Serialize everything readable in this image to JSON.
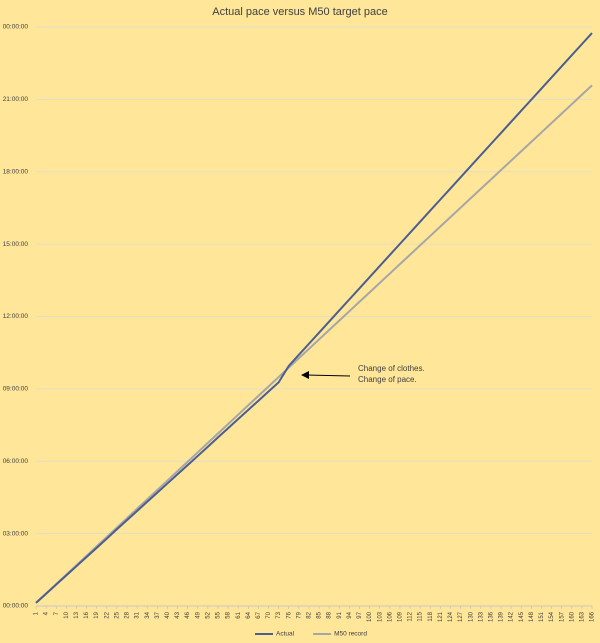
{
  "chart_data": {
    "type": "line",
    "title": "Actual pace versus M50 target pace",
    "x": [
      1,
      4,
      7,
      10,
      13,
      16,
      19,
      22,
      25,
      28,
      31,
      34,
      37,
      40,
      43,
      46,
      49,
      52,
      55,
      58,
      61,
      64,
      67,
      70,
      73,
      76,
      79,
      82,
      85,
      88,
      91,
      94,
      97,
      100,
      103,
      106,
      109,
      112,
      115,
      118,
      121,
      124,
      127,
      130,
      133,
      136,
      139,
      142,
      145,
      148,
      151,
      154,
      157,
      160,
      163,
      166
    ],
    "xlim": [
      1,
      166
    ],
    "xticks": [
      1,
      4,
      7,
      10,
      13,
      16,
      19,
      22,
      25,
      28,
      31,
      34,
      37,
      40,
      43,
      46,
      49,
      52,
      55,
      58,
      61,
      64,
      67,
      70,
      73,
      76,
      79,
      82,
      85,
      88,
      91,
      94,
      97,
      100,
      103,
      106,
      109,
      112,
      115,
      118,
      121,
      124,
      127,
      130,
      133,
      136,
      139,
      142,
      145,
      148,
      151,
      154,
      157,
      160,
      163,
      166
    ],
    "ylim": [
      0,
      24
    ],
    "yticks": [
      {
        "value": 0,
        "label": "00:00:00"
      },
      {
        "value": 3,
        "label": "03:00:00"
      },
      {
        "value": 6,
        "label": "06:00:00"
      },
      {
        "value": 9,
        "label": "09:00:00"
      },
      {
        "value": 12,
        "label": "12:00:00"
      },
      {
        "value": 15,
        "label": "15:00:00"
      },
      {
        "value": 18,
        "label": "18:00:00"
      },
      {
        "value": 21,
        "label": "21:00:00"
      },
      {
        "value": 24,
        "label": "00:00:00"
      }
    ],
    "grid": true,
    "legend": "bottom",
    "series": [
      {
        "name": "Actual",
        "color": "#4a5f8f",
        "values": [
          0.13,
          0.51,
          0.89,
          1.27,
          1.65,
          2.03,
          2.41,
          2.79,
          3.18,
          3.56,
          3.94,
          4.32,
          4.7,
          5.08,
          5.46,
          5.84,
          6.22,
          6.6,
          6.99,
          7.37,
          7.75,
          8.13,
          8.51,
          8.89,
          9.27,
          9.95,
          10.41,
          10.87,
          11.33,
          11.79,
          12.25,
          12.71,
          13.17,
          13.63,
          14.09,
          14.55,
          15.01,
          15.47,
          15.93,
          16.39,
          16.85,
          17.31,
          17.77,
          18.23,
          18.69,
          19.15,
          19.61,
          20.07,
          20.53,
          20.99,
          21.45,
          21.91,
          22.37,
          22.83,
          23.29,
          23.75
        ]
      },
      {
        "name": "M50 record",
        "color": "#a6a6a6",
        "values": [
          0.13,
          0.52,
          0.91,
          1.3,
          1.69,
          2.08,
          2.47,
          2.86,
          3.25,
          3.64,
          4.03,
          4.42,
          4.81,
          5.2,
          5.59,
          5.98,
          6.37,
          6.76,
          7.15,
          7.54,
          7.93,
          8.32,
          8.71,
          9.1,
          9.49,
          9.88,
          10.27,
          10.66,
          11.05,
          11.44,
          11.83,
          12.22,
          12.61,
          13.0,
          13.39,
          13.78,
          14.17,
          14.56,
          14.95,
          15.34,
          15.73,
          16.12,
          16.51,
          16.9,
          17.29,
          17.68,
          18.07,
          18.46,
          18.85,
          19.24,
          19.63,
          20.02,
          20.41,
          20.8,
          21.19,
          21.58
        ]
      }
    ],
    "annotation": [
      "Change of clothes.",
      "Change of pace."
    ]
  }
}
